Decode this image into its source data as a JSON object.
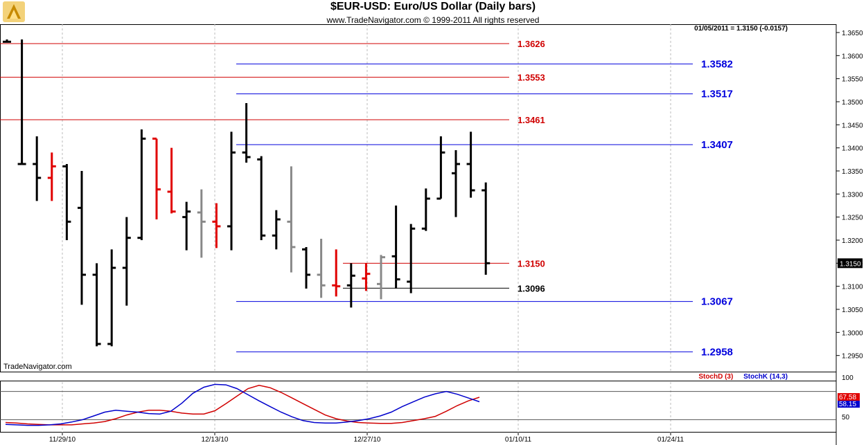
{
  "chart_data": {
    "type": "ohlc",
    "title": "$EUR-USD:  Euro/US Dollar  (Daily bars)",
    "subtitle": "www.TradeNavigator.com © 1999-2011 All rights reserved",
    "readout": "01/05/2011 = 1.3150 (-0.0157)",
    "watermark": "TradeNavigator.com",
    "price_axis": {
      "ylim": [
        1.2915,
        1.3668
      ],
      "ticks": [
        "1.3650",
        "1.3600",
        "1.3550",
        "1.3500",
        "1.3450",
        "1.3400",
        "1.3350",
        "1.3300",
        "1.3250",
        "1.3200",
        "1.3150",
        "1.3100",
        "1.3050",
        "1.3000",
        "1.2950"
      ],
      "last_price_label": "1.3150",
      "grid_vertical": true
    },
    "date_axis": {
      "labels": [
        "11/29/10",
        "12/13/10",
        "12/27/10",
        "01/10/11",
        "01/24/11"
      ]
    },
    "bars": [
      {
        "x": 0,
        "o": 1.363,
        "h": 1.3635,
        "l": 1.363,
        "c": 1.363,
        "color": "black"
      },
      {
        "x": 1,
        "o": 1.3365,
        "h": 1.3635,
        "l": 1.3365,
        "c": 1.3365,
        "color": "black"
      },
      {
        "x": 2,
        "o": 1.3365,
        "h": 1.3425,
        "l": 1.3285,
        "c": 1.3335,
        "color": "black"
      },
      {
        "x": 3,
        "o": 1.3335,
        "h": 1.339,
        "l": 1.3285,
        "c": 1.336,
        "color": "red"
      },
      {
        "x": 4,
        "o": 1.336,
        "h": 1.3365,
        "l": 1.32,
        "c": 1.324,
        "color": "black"
      },
      {
        "x": 5,
        "o": 1.327,
        "h": 1.335,
        "l": 1.306,
        "c": 1.3125,
        "color": "black"
      },
      {
        "x": 6,
        "o": 1.3125,
        "h": 1.315,
        "l": 1.297,
        "c": 1.2975,
        "color": "black"
      },
      {
        "x": 7,
        "o": 1.2975,
        "h": 1.318,
        "l": 1.297,
        "c": 1.314,
        "color": "black"
      },
      {
        "x": 8,
        "o": 1.314,
        "h": 1.325,
        "l": 1.3058,
        "c": 1.3205,
        "color": "black"
      },
      {
        "x": 9,
        "o": 1.3205,
        "h": 1.344,
        "l": 1.32,
        "c": 1.342,
        "color": "black"
      },
      {
        "x": 10,
        "o": 1.342,
        "h": 1.342,
        "l": 1.3245,
        "c": 1.331,
        "color": "red"
      },
      {
        "x": 11,
        "o": 1.3305,
        "h": 1.34,
        "l": 1.3258,
        "c": 1.3262,
        "color": "red"
      },
      {
        "x": 12,
        "o": 1.325,
        "h": 1.3283,
        "l": 1.3178,
        "c": 1.3262,
        "color": "black"
      },
      {
        "x": 13,
        "o": 1.326,
        "h": 1.331,
        "l": 1.3162,
        "c": 1.324,
        "color": "gray"
      },
      {
        "x": 14,
        "o": 1.324,
        "h": 1.328,
        "l": 1.3183,
        "c": 1.323,
        "color": "red"
      },
      {
        "x": 15,
        "o": 1.323,
        "h": 1.3435,
        "l": 1.3178,
        "c": 1.339,
        "color": "black"
      },
      {
        "x": 16,
        "o": 1.339,
        "h": 1.3497,
        "l": 1.3368,
        "c": 1.338,
        "color": "black"
      },
      {
        "x": 17,
        "o": 1.3375,
        "h": 1.3382,
        "l": 1.32,
        "c": 1.321,
        "color": "black"
      },
      {
        "x": 18,
        "o": 1.321,
        "h": 1.3265,
        "l": 1.318,
        "c": 1.3245,
        "color": "black"
      },
      {
        "x": 19,
        "o": 1.324,
        "h": 1.336,
        "l": 1.313,
        "c": 1.3185,
        "color": "gray"
      },
      {
        "x": 20,
        "o": 1.318,
        "h": 1.3185,
        "l": 1.3095,
        "c": 1.3125,
        "color": "black"
      },
      {
        "x": 21,
        "o": 1.3125,
        "h": 1.3203,
        "l": 1.3075,
        "c": 1.3102,
        "color": "gray"
      },
      {
        "x": 22,
        "o": 1.3102,
        "h": 1.318,
        "l": 1.3078,
        "c": 1.31,
        "color": "red"
      },
      {
        "x": 23,
        "o": 1.3102,
        "h": 1.315,
        "l": 1.3054,
        "c": 1.3123,
        "color": "black"
      },
      {
        "x": 24,
        "o": 1.3117,
        "h": 1.315,
        "l": 1.309,
        "c": 1.3127,
        "color": "red"
      },
      {
        "x": 25,
        "o": 1.3105,
        "h": 1.3168,
        "l": 1.3072,
        "c": 1.3163,
        "color": "gray"
      },
      {
        "x": 26,
        "o": 1.3165,
        "h": 1.3275,
        "l": 1.3095,
        "c": 1.3115,
        "color": "black"
      },
      {
        "x": 27,
        "o": 1.311,
        "h": 1.3235,
        "l": 1.3085,
        "c": 1.3225,
        "color": "black"
      },
      {
        "x": 28,
        "o": 1.3225,
        "h": 1.3312,
        "l": 1.322,
        "c": 1.329,
        "color": "black"
      },
      {
        "x": 29,
        "o": 1.329,
        "h": 1.3425,
        "l": 1.329,
        "c": 1.339,
        "color": "black"
      },
      {
        "x": 30,
        "o": 1.3345,
        "h": 1.3395,
        "l": 1.325,
        "c": 1.3365,
        "color": "black"
      },
      {
        "x": 31,
        "o": 1.3365,
        "h": 1.3435,
        "l": 1.3292,
        "c": 1.3308,
        "color": "black"
      },
      {
        "x": 32,
        "o": 1.3308,
        "h": 1.3325,
        "l": 1.3125,
        "c": 1.315,
        "color": "black"
      }
    ],
    "levels": [
      {
        "value": 1.3626,
        "label": "1.3626",
        "color": "#d00000",
        "group": "red"
      },
      {
        "value": 1.3553,
        "label": "1.3553",
        "color": "#d00000",
        "group": "red"
      },
      {
        "value": 1.3461,
        "label": "1.3461",
        "color": "#d00000",
        "group": "red"
      },
      {
        "value": 1.315,
        "label": "1.3150",
        "color": "#d00000",
        "group": "mid"
      },
      {
        "value": 1.3096,
        "label": "1.3096",
        "color": "#000000",
        "group": "black"
      },
      {
        "value": 1.3582,
        "label": "1.3582",
        "color": "#0000dd",
        "group": "blue"
      },
      {
        "value": 1.3517,
        "label": "1.3517",
        "color": "#0000dd",
        "group": "blue"
      },
      {
        "value": 1.3407,
        "label": "1.3407",
        "color": "#0000dd",
        "group": "blue"
      },
      {
        "value": 1.3067,
        "label": "1.3067",
        "color": "#0000dd",
        "group": "blue"
      },
      {
        "value": 1.2958,
        "label": "1.2958",
        "color": "#0000dd",
        "group": "blue"
      }
    ],
    "stochastic": {
      "legend": [
        {
          "name": "StochD (3)",
          "color": "#d00000"
        },
        {
          "name": "StochK (14,3)",
          "color": "#0000cc"
        }
      ],
      "scale_label": "100",
      "scale_label_low": "50",
      "last_d": "67.58",
      "last_k": "58.15",
      "stoch_d": [
        14,
        13,
        11,
        10,
        9,
        9,
        9,
        11,
        13,
        16,
        22,
        30,
        36,
        40,
        40,
        38,
        34,
        32,
        32,
        39,
        54,
        70,
        86,
        93,
        88,
        78,
        66,
        54,
        42,
        30,
        22,
        17,
        14,
        13,
        12,
        12,
        14,
        18,
        22,
        27,
        38,
        50,
        60,
        67.58
      ],
      "stoch_k": [
        10,
        9,
        8,
        8,
        9,
        11,
        15,
        20,
        28,
        36,
        40,
        38,
        36,
        33,
        32,
        38,
        55,
        76,
        89,
        95,
        94,
        86,
        73,
        60,
        48,
        36,
        26,
        18,
        14,
        13,
        13,
        15,
        18,
        22,
        28,
        36,
        48,
        58,
        68,
        75,
        80,
        74,
        66,
        58.15
      ]
    }
  }
}
